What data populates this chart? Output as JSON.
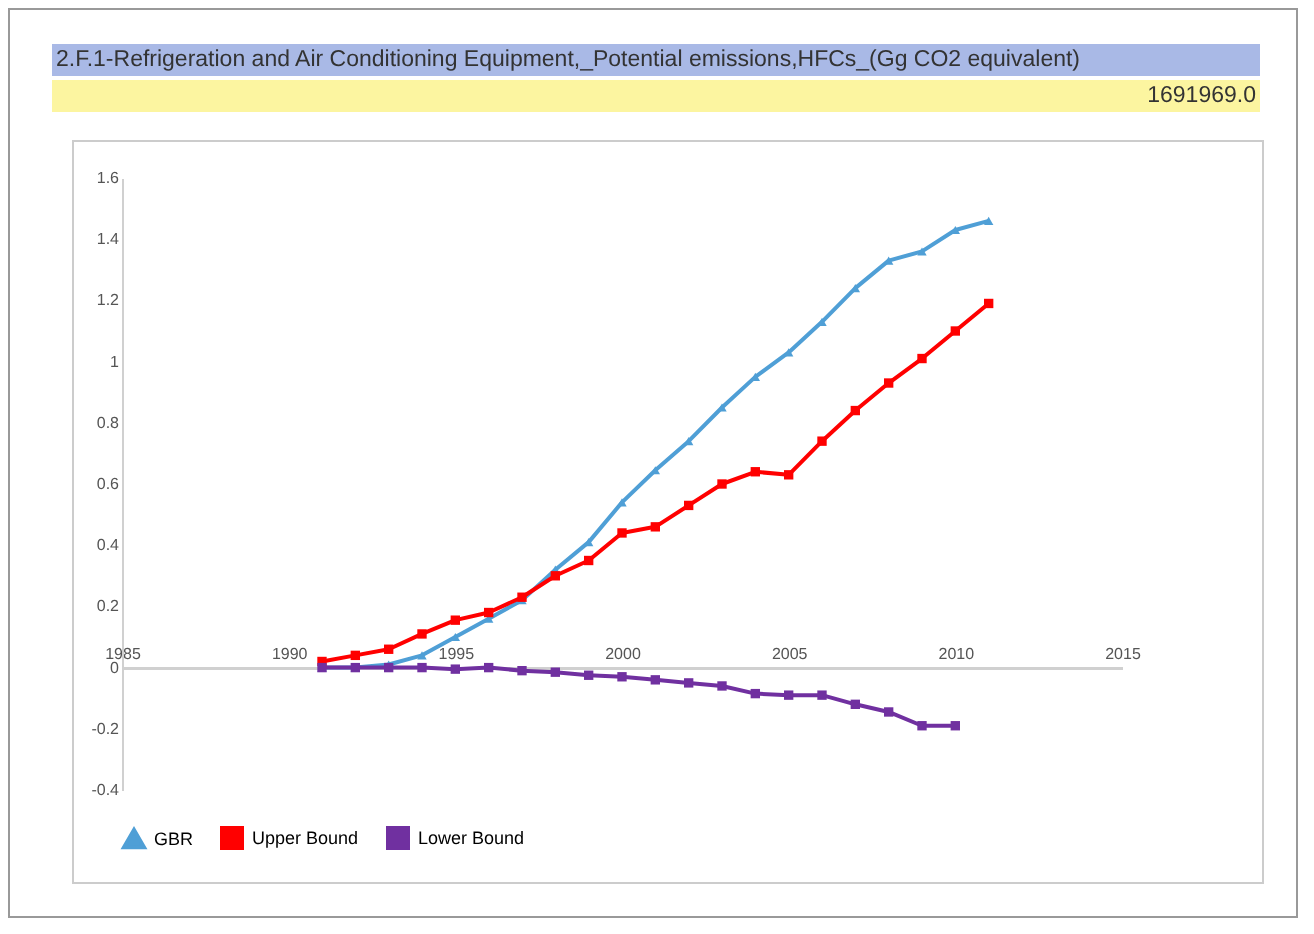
{
  "chart_data": {
    "type": "line",
    "title": "2.F.1-Refrigeration and Air Conditioning Equipment,_Potential emissions,HFCs_(Gg CO2 equivalent)",
    "subtitle": "1691969.0",
    "x": [
      1991,
      1992,
      1993,
      1994,
      1995,
      1996,
      1997,
      1998,
      1999,
      2000,
      2001,
      2002,
      2003,
      2004,
      2005,
      2006,
      2007,
      2008,
      2009,
      2010,
      2011
    ],
    "series": [
      {
        "name": "GBR",
        "color": "#4f9fd6",
        "marker": "triangle",
        "values": [
          0,
          0,
          0.01,
          0.04,
          0.1,
          0.16,
          0.22,
          0.32,
          0.41,
          0.54,
          0.645,
          0.74,
          0.85,
          0.95,
          1.03,
          1.13,
          1.24,
          1.33,
          1.36,
          1.43,
          1.46
        ]
      },
      {
        "name": "Upper Bound",
        "color": "#ff0000",
        "marker": "square",
        "values": [
          0.02,
          0.04,
          0.06,
          0.11,
          0.155,
          0.18,
          0.23,
          0.3,
          0.35,
          0.44,
          0.46,
          0.53,
          0.6,
          0.64,
          0.63,
          0.74,
          0.84,
          0.93,
          1.01,
          1.1,
          1.19
        ]
      },
      {
        "name": "Lower Bound",
        "color": "#7030a0",
        "marker": "square",
        "values": [
          0,
          0,
          0,
          0,
          -0.005,
          0,
          -0.01,
          -0.015,
          -0.025,
          -0.03,
          -0.04,
          -0.05,
          -0.06,
          -0.085,
          -0.09,
          -0.09,
          -0.12,
          -0.145,
          -0.19,
          -0.19,
          null
        ]
      }
    ],
    "xlim": [
      1985,
      2015
    ],
    "xticks": [
      1985,
      1990,
      1995,
      2000,
      2005,
      2010,
      2015
    ],
    "ylim": [
      -0.4,
      1.6
    ],
    "yticks": [
      -0.4,
      -0.2,
      0,
      0.2,
      0.4,
      0.6,
      0.8,
      1,
      1.2,
      1.4,
      1.6
    ],
    "legend": "bottom",
    "line_style": "solid"
  }
}
